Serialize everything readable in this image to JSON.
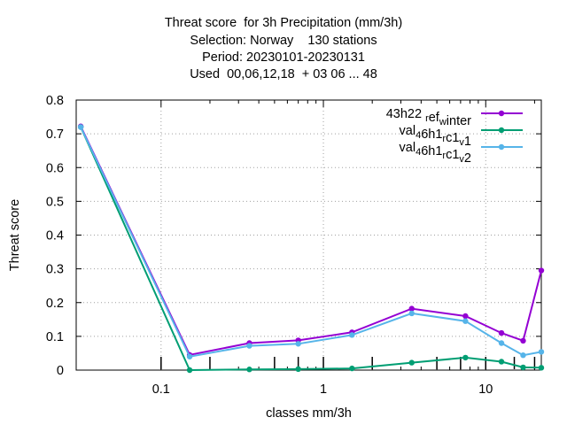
{
  "chart_data": {
    "type": "line",
    "title_lines": [
      "Threat score  for 3h Precipitation (mm/3h)",
      "Selection: Norway    130 stations",
      "Period: 20230101-20230131",
      "Used  00,06,12,18  + 03 06 ... 48"
    ],
    "xlabel": "classes mm/3h",
    "ylabel": "Threat score",
    "xscale": "log",
    "xlim": [
      0.03,
      22
    ],
    "ylim": [
      0,
      0.8
    ],
    "yticks": [
      0,
      0.1,
      0.2,
      0.3,
      0.4,
      0.5,
      0.6,
      0.7,
      0.8
    ],
    "ytick_labels": [
      "0",
      "0.1",
      "0.2",
      "0.3",
      "0.4",
      "0.5",
      "0.6",
      "0.7",
      "0.8"
    ],
    "xticks": [
      0.1,
      1,
      10
    ],
    "xtick_labels": [
      "0.1",
      "1",
      "10"
    ],
    "minor_xticks": [
      0.2,
      0.3,
      0.4,
      0.5,
      0.6,
      0.7,
      0.8,
      0.9,
      2,
      3,
      4,
      5,
      6,
      7,
      8,
      9,
      20
    ],
    "grid": true,
    "legend_position": "top-right",
    "class_markers": [
      0.1,
      0.2,
      0.5,
      0.7,
      1,
      2,
      5,
      7,
      10,
      15,
      20
    ],
    "series": [
      {
        "name": "43h22 r ef w inter",
        "label_parts": [
          [
            "43h22 ",
            "n"
          ],
          [
            "r",
            "sub"
          ],
          [
            "ef",
            "n"
          ],
          [
            "w",
            "sub"
          ],
          [
            "inter",
            "n"
          ]
        ],
        "color": "#9400d3",
        "x": [
          0.032,
          0.15,
          0.35,
          0.7,
          1.5,
          3.5,
          7.5,
          12.5,
          17,
          22
        ],
        "y": [
          0.722,
          0.045,
          0.08,
          0.088,
          0.112,
          0.182,
          0.16,
          0.11,
          0.087,
          0.295
        ]
      },
      {
        "name": "val 4 6h1 r c1 v 1",
        "label_parts": [
          [
            "val",
            "n"
          ],
          [
            "4",
            "sub"
          ],
          [
            "6h1",
            "n"
          ],
          [
            "r",
            "sub"
          ],
          [
            "c1",
            "n"
          ],
          [
            "v",
            "sub"
          ],
          [
            "1",
            "n"
          ]
        ],
        "color": "#009e73",
        "x": [
          0.032,
          0.15,
          0.35,
          0.7,
          1.5,
          3.5,
          7.5,
          12.5,
          17,
          22
        ],
        "y": [
          0.72,
          0.0,
          0.002,
          0.003,
          0.005,
          0.022,
          0.037,
          0.025,
          0.008,
          0.007
        ]
      },
      {
        "name": "val 4 6h1 r c1 v 2",
        "label_parts": [
          [
            "val",
            "n"
          ],
          [
            "4",
            "sub"
          ],
          [
            "6h1",
            "n"
          ],
          [
            "r",
            "sub"
          ],
          [
            "c1",
            "n"
          ],
          [
            "v",
            "sub"
          ],
          [
            "2",
            "n"
          ]
        ],
        "color": "#56b4e9",
        "x": [
          0.032,
          0.15,
          0.35,
          0.7,
          1.5,
          3.5,
          7.5,
          12.5,
          17,
          22
        ],
        "y": [
          0.72,
          0.04,
          0.072,
          0.078,
          0.104,
          0.168,
          0.145,
          0.08,
          0.044,
          0.054
        ]
      }
    ]
  }
}
